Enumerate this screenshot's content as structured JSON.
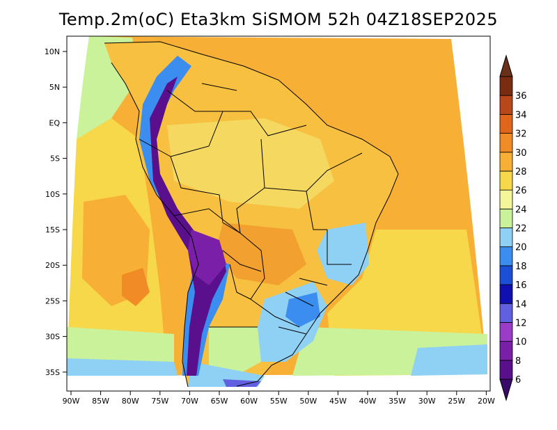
{
  "title": "Temp.2m(oC) Eta3km SiSMOM 52h 04Z18SEP2025",
  "lat_labels": [
    "10N",
    "5N",
    "EQ",
    "5S",
    "10S",
    "15S",
    "20S",
    "25S",
    "30S",
    "35S"
  ],
  "lon_labels": [
    "90W",
    "85W",
    "80W",
    "75W",
    "70W",
    "65W",
    "60W",
    "55W",
    "50W",
    "45W",
    "40W",
    "35W",
    "30W",
    "25W",
    "20W"
  ],
  "colorbar": {
    "labels": [
      "6",
      "8",
      "10",
      "12",
      "14",
      "16",
      "18",
      "20",
      "22",
      "24",
      "26",
      "28",
      "30",
      "32",
      "34",
      "36"
    ],
    "colors": [
      "#5a0f8c",
      "#7a1fa8",
      "#9a3cc8",
      "#6060e0",
      "#1010b0",
      "#1a4fd6",
      "#3b8ef0",
      "#8fd0f5",
      "#c9f29a",
      "#f5f59a",
      "#f7d84a",
      "#f7b035",
      "#f08b25",
      "#e0661c",
      "#b8471a",
      "#7a2c10"
    ],
    "arrow_low": "#3a0a6a",
    "arrow_high": "#6b3018"
  },
  "field_colors": {
    "ocean_warm": "#f7b035",
    "ocean_mid": "#f7d84a",
    "ocean_cool": "#f5f59a",
    "ocean_south": "#c9f29a",
    "land": "#f7c040",
    "land_hot": "#f08b25",
    "andes_cold": "#5a0f8c",
    "andes_mid": "#3b8ef0",
    "south_cool": "#8fd0f5",
    "borders": "#000000"
  }
}
